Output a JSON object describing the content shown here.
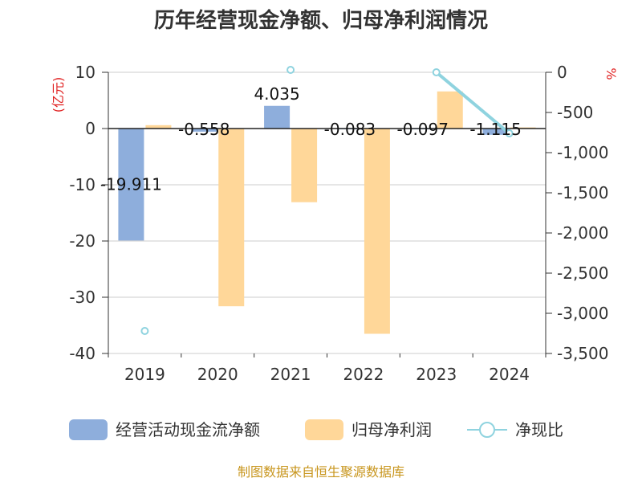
{
  "chart_data": {
    "type": "bar",
    "title": "历年经营现金净额、归母净利润情况",
    "categories": [
      "2019",
      "2020",
      "2021",
      "2022",
      "2023",
      "2024"
    ],
    "y_left": {
      "label": "(亿元)",
      "range": [
        -40,
        10
      ],
      "ticks": [
        "10",
        "0",
        "-10",
        "-20",
        "-30",
        "-40"
      ]
    },
    "y_right": {
      "label": "%",
      "range": [
        -3500,
        0
      ],
      "ticks": [
        "0",
        "-500",
        "-1,000",
        "-1,500",
        "-2,000",
        "-2,500",
        "-3,000",
        "-3,500"
      ]
    },
    "series": [
      {
        "name": "经营活动现金流净额",
        "type": "bar",
        "axis": "left",
        "color": "#8eaedc",
        "values": [
          -19.911,
          -0.558,
          4.035,
          -0.083,
          -0.097,
          -1.115
        ],
        "labels": [
          "-19.911",
          "-0.558",
          "4.035",
          "-0.083",
          "-0.097",
          "-1.115"
        ]
      },
      {
        "name": "归母净利润",
        "type": "bar",
        "axis": "left",
        "color": "#ffd799",
        "values": [
          0.6,
          -31.6,
          -13.1,
          -36.5,
          6.6,
          0.2
        ]
      },
      {
        "name": "净现比",
        "type": "line",
        "axis": "right",
        "color": "#8fd3df",
        "values": [
          -3220,
          null,
          30,
          null,
          0,
          -760
        ]
      }
    ],
    "grid": true,
    "legend_position": "bottom",
    "source_text": "制图数据来自恒生聚源数据库"
  }
}
